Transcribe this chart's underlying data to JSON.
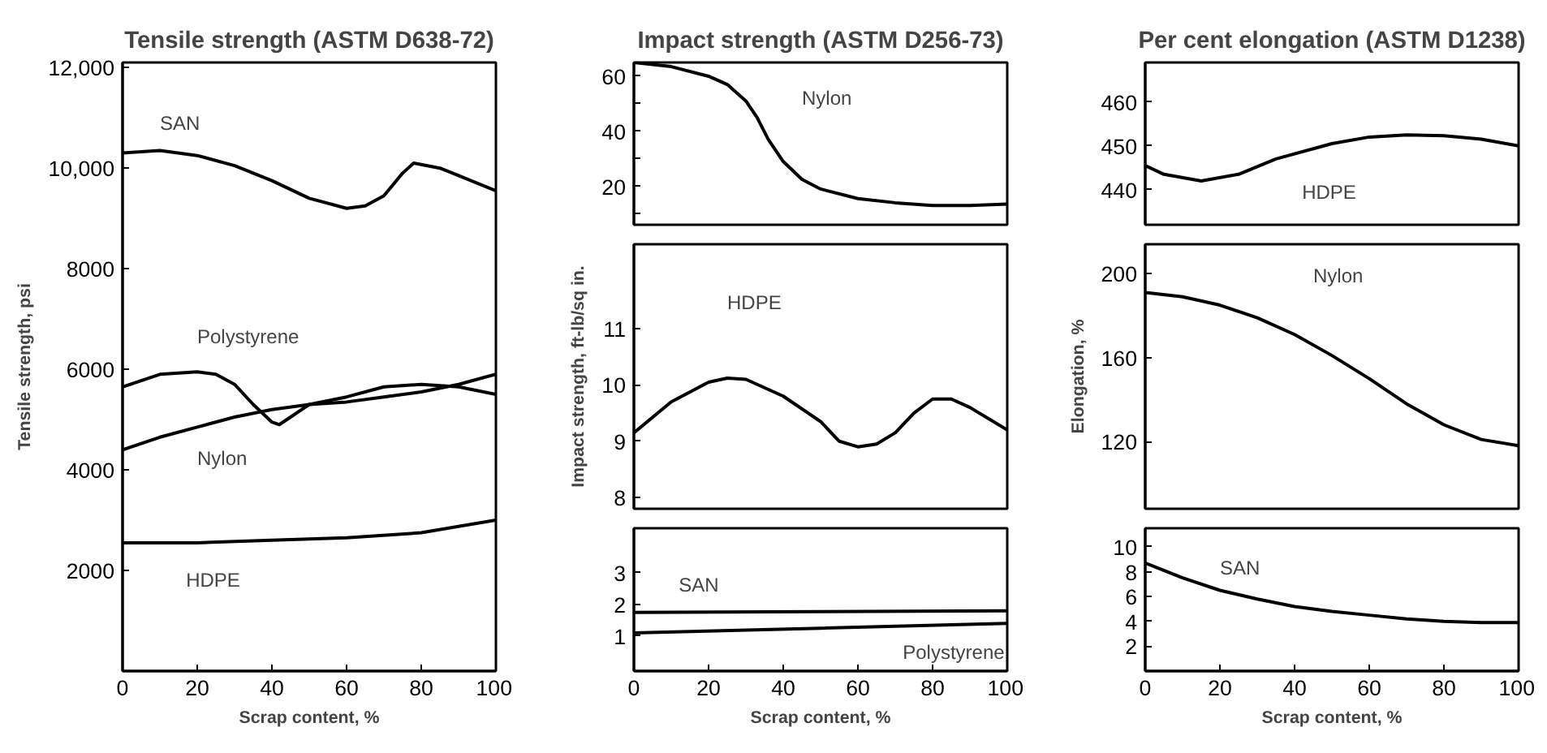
{
  "chart_data": [
    {
      "type": "line",
      "title": "Tensile strength (ASTM D638-72)",
      "xlabel": "Scrap content, %",
      "ylabel": "Tensile strength, psi",
      "xlim": [
        0,
        100
      ],
      "ylim": [
        0,
        12100
      ],
      "xticks": [
        0,
        20,
        40,
        60,
        80,
        100
      ],
      "yticks": [
        2000,
        4000,
        6000,
        8000,
        {
          "value": 10000,
          "label": "10,000"
        },
        {
          "value": 12000,
          "label": "12,000"
        }
      ],
      "series": [
        {
          "name": "SAN",
          "color": "#000000",
          "x": [
            0,
            10,
            20,
            30,
            40,
            50,
            60,
            65,
            70,
            75,
            78,
            85,
            90,
            100
          ],
          "values": [
            10300,
            10350,
            10250,
            10050,
            9750,
            9400,
            9200,
            9250,
            9450,
            9900,
            10100,
            10000,
            9850,
            9550
          ]
        },
        {
          "name": "Polystyrene",
          "color": "#000000",
          "x": [
            0,
            10,
            20,
            25,
            30,
            35,
            40,
            42,
            45,
            50,
            60,
            70,
            80,
            90,
            100
          ],
          "values": [
            5650,
            5900,
            5950,
            5900,
            5700,
            5300,
            4950,
            4900,
            5050,
            5300,
            5450,
            5650,
            5700,
            5650,
            5500
          ]
        },
        {
          "name": "Nylon",
          "color": "#000000",
          "x": [
            0,
            10,
            20,
            30,
            40,
            50,
            60,
            70,
            80,
            90,
            100
          ],
          "values": [
            4400,
            4650,
            4850,
            5050,
            5200,
            5300,
            5350,
            5450,
            5550,
            5700,
            5900
          ]
        },
        {
          "name": "HDPE",
          "color": "#000000",
          "x": [
            0,
            20,
            40,
            60,
            80,
            100
          ],
          "values": [
            2550,
            2550,
            2600,
            2650,
            2750,
            3000
          ]
        }
      ]
    },
    {
      "type": "line",
      "title": "Impact strength (ASTM D256-73)",
      "xlim": [
        0,
        100
      ],
      "ylim": [
        6,
        65
      ],
      "xticks": [
        0,
        20,
        40,
        60,
        80,
        100
      ],
      "yticks": [
        {
          "value": 10,
          "label": null
        },
        20,
        {
          "value": 30,
          "label": null
        },
        40,
        {
          "value": 50,
          "label": null
        },
        60
      ],
      "tick_labels": "y",
      "series": [
        {
          "name": "Nylon",
          "color": "#000000",
          "x": [
            0,
            10,
            20,
            25,
            30,
            33,
            36,
            40,
            45,
            50,
            60,
            70,
            80,
            90,
            100
          ],
          "values": [
            65,
            63.5,
            60,
            57,
            51,
            45,
            37,
            29,
            22.5,
            19,
            15.5,
            14,
            13,
            13,
            13.5
          ]
        }
      ]
    },
    {
      "type": "line",
      "ylabel": "Impact strength, ft-lb/sq in.",
      "xlim": [
        0,
        100
      ],
      "ylim": [
        7.8,
        12.5
      ],
      "xticks": [
        0,
        20,
        40,
        60,
        80,
        100
      ],
      "yticks": [
        8,
        9,
        10,
        11
      ],
      "tick_labels": "y",
      "series": [
        {
          "name": "HDPE",
          "color": "#000000",
          "x": [
            0,
            10,
            20,
            25,
            30,
            40,
            50,
            55,
            60,
            65,
            70,
            75,
            80,
            85,
            90,
            100
          ],
          "values": [
            9.15,
            9.7,
            10.05,
            10.12,
            10.1,
            9.8,
            9.35,
            9.0,
            8.9,
            8.95,
            9.15,
            9.5,
            9.75,
            9.75,
            9.6,
            9.2
          ]
        }
      ]
    },
    {
      "type": "line",
      "xlabel": "Scrap content, %",
      "xlim": [
        0,
        100
      ],
      "ylim": [
        -0.1,
        4.4
      ],
      "xticks": [
        0,
        20,
        40,
        60,
        80,
        100
      ],
      "yticks": [
        1,
        2,
        3
      ],
      "series": [
        {
          "name": "SAN",
          "color": "#000000",
          "x": [
            0,
            50,
            100
          ],
          "values": [
            1.75,
            1.77,
            1.8
          ]
        },
        {
          "name": "Polystyrene",
          "color": "#000000",
          "x": [
            0,
            50,
            100
          ],
          "values": [
            1.1,
            1.25,
            1.4
          ]
        }
      ]
    },
    {
      "type": "line",
      "title": "Per cent elongation (ASTM D1238)",
      "xlim": [
        0,
        100
      ],
      "ylim": [
        432,
        469
      ],
      "xticks": [
        0,
        20,
        40,
        60,
        80,
        100
      ],
      "yticks": [
        440,
        450,
        460
      ],
      "tick_labels": "y",
      "series": [
        {
          "name": "HDPE",
          "color": "#000000",
          "x": [
            0,
            5,
            15,
            25,
            35,
            50,
            60,
            70,
            80,
            90,
            100
          ],
          "values": [
            445.5,
            443.5,
            442,
            443.5,
            447,
            450.5,
            452,
            452.5,
            452.3,
            451.5,
            450
          ]
        }
      ]
    },
    {
      "type": "line",
      "ylabel": "Elongation, %",
      "xlim": [
        0,
        100
      ],
      "ylim": [
        88,
        214
      ],
      "xticks": [
        0,
        20,
        40,
        60,
        80,
        100
      ],
      "yticks": [
        120,
        160,
        200
      ],
      "tick_labels": "y",
      "series": [
        {
          "name": "Nylon",
          "color": "#000000",
          "x": [
            0,
            10,
            20,
            30,
            40,
            50,
            60,
            70,
            80,
            90,
            100
          ],
          "values": [
            191,
            189,
            185,
            179,
            171,
            161,
            150,
            138,
            128,
            121,
            118
          ]
        }
      ]
    },
    {
      "type": "line",
      "xlabel": "Scrap content, %",
      "xlim": [
        0,
        100
      ],
      "ylim": [
        0,
        11.5
      ],
      "xticks": [
        0,
        20,
        40,
        60,
        80,
        100
      ],
      "yticks": [
        2,
        4,
        6,
        8,
        10
      ],
      "series": [
        {
          "name": "SAN",
          "color": "#000000",
          "x": [
            0,
            10,
            20,
            30,
            40,
            50,
            60,
            70,
            80,
            90,
            100
          ],
          "values": [
            8.7,
            7.5,
            6.5,
            5.8,
            5.2,
            4.8,
            4.5,
            4.2,
            4.0,
            3.9,
            3.9
          ]
        }
      ]
    }
  ]
}
